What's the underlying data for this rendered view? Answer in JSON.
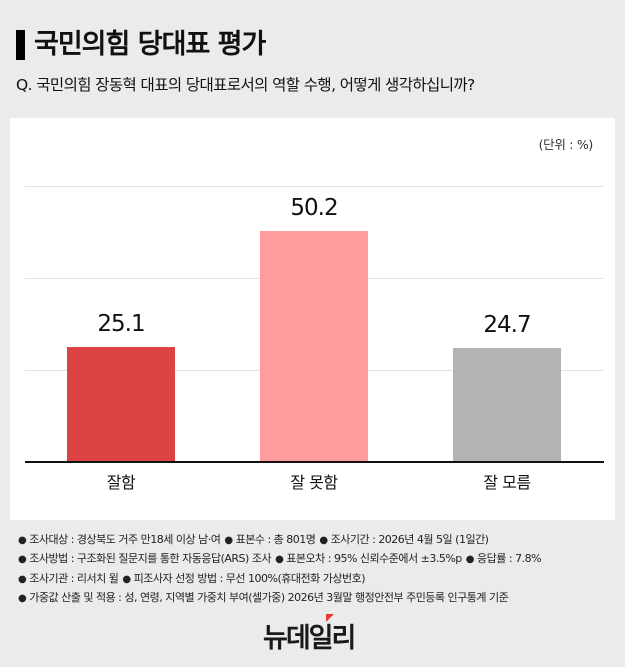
{
  "header": {
    "title": "국민의힘 당대표 평가",
    "question": "Q. 국민의힘 장동혁 대표의 당대표로서의 역할 수행, 어떻게 생각하십니까?"
  },
  "chart": {
    "unit_label": "(단위 : %)"
  },
  "chart_data": {
    "type": "bar",
    "title": "국민의힘 당대표 평가",
    "subtitle": "Q. 국민의힘 장동혁 대표의 당대표로서의 역할 수행, 어떻게 생각하십니까?",
    "categories": [
      "잘함",
      "잘 못함",
      "잘 모름"
    ],
    "values": [
      25.1,
      50.2,
      24.7
    ],
    "value_labels": [
      "25.1",
      "50.2",
      "24.7"
    ],
    "colors": [
      "#dc4444",
      "#ff9c9c",
      "#b3b3b3"
    ],
    "xlabel": "",
    "ylabel": "",
    "unit": "%",
    "ylim": [
      0,
      60
    ],
    "grid": true,
    "gridlines": [
      20,
      40,
      60
    ],
    "legend": "none"
  },
  "notes": [
    [
      {
        "label": "조사대상",
        "value": "경상북도 거주 만18세 이상 남·여"
      },
      {
        "label": "표본수",
        "value": "총 801명"
      },
      {
        "label": "조사기간",
        "value": "2026년 4월 5일 (1일간)"
      }
    ],
    [
      {
        "label": "조사방법",
        "value": "구조화된 질문지를 통한 자동응답(ARS) 조사"
      },
      {
        "label": "표본오차",
        "value": "95% 신뢰수준에서 ±3.5%p"
      },
      {
        "label": "응답률",
        "value": "7.8%"
      }
    ],
    [
      {
        "label": "조사기관",
        "value": "리서치 윌"
      },
      {
        "label": "피조사자 선정 방법",
        "value": "무선 100%(휴대전화 가상번호)"
      }
    ],
    [
      {
        "label": "가중값 산출 및 적용",
        "value": "성, 연령, 지역별 가중치 부여(셀가중)  2026년 3월말 행정안전부 주민등록 인구통계 기준"
      }
    ]
  ],
  "footer": {
    "logo_text": "뉴데일리"
  }
}
